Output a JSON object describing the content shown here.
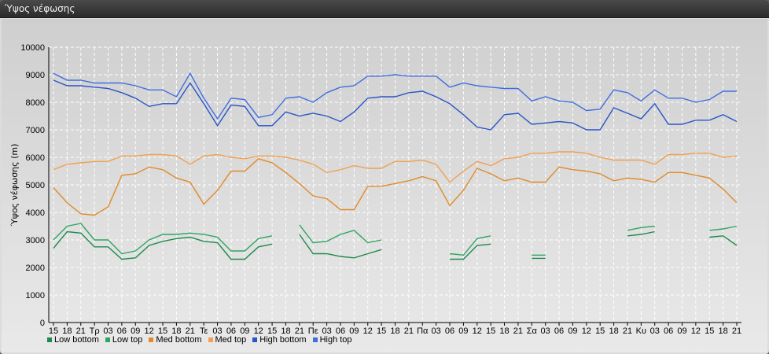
{
  "window": {
    "title": "Ύψος νέφωσης"
  },
  "chart_data": {
    "type": "line",
    "title": "",
    "xlabel": "",
    "ylabel": "Ύψος νέφωσης (m)",
    "ylim": [
      0,
      10000
    ],
    "yticks": [
      0,
      1000,
      2000,
      3000,
      4000,
      5000,
      6000,
      7000,
      8000,
      9000,
      10000
    ],
    "categories": [
      "15",
      "18",
      "21",
      "Τρ",
      "03",
      "06",
      "09",
      "12",
      "15",
      "18",
      "21",
      "Τε",
      "03",
      "06",
      "09",
      "12",
      "15",
      "18",
      "21",
      "Πε",
      "03",
      "06",
      "09",
      "12",
      "15",
      "18",
      "21",
      "Πα",
      "03",
      "06",
      "09",
      "12",
      "15",
      "18",
      "21",
      "Σα",
      "03",
      "06",
      "09",
      "12",
      "15",
      "18",
      "21",
      "Κυ",
      "03",
      "06",
      "09",
      "12",
      "15",
      "18",
      "21"
    ],
    "grid": true,
    "legend_position": "bottom-left",
    "series": [
      {
        "name": "Low bottom",
        "color": "#1e8a4c",
        "values": [
          2700,
          3300,
          3250,
          2750,
          2750,
          2300,
          2350,
          2800,
          2950,
          3050,
          3100,
          2950,
          2900,
          2300,
          2300,
          2750,
          2850,
          null,
          3200,
          2500,
          2500,
          2400,
          2350,
          2500,
          2650,
          null,
          null,
          null,
          null,
          2300,
          2300,
          2800,
          2850,
          null,
          null,
          2330,
          2330,
          null,
          null,
          null,
          null,
          null,
          3150,
          3200,
          3300,
          null,
          null,
          null,
          3100,
          3150,
          2800
        ]
      },
      {
        "name": "Low top",
        "color": "#2fa660",
        "values": [
          3000,
          3500,
          3600,
          3000,
          3000,
          2500,
          2600,
          3000,
          3200,
          3200,
          3250,
          3200,
          3100,
          2600,
          2600,
          3050,
          3150,
          null,
          3550,
          2900,
          2950,
          3200,
          3350,
          2900,
          3000,
          null,
          null,
          null,
          null,
          2500,
          2450,
          3050,
          3150,
          null,
          null,
          2450,
          2450,
          null,
          null,
          null,
          null,
          null,
          3350,
          3450,
          3500,
          null,
          null,
          null,
          3350,
          3400,
          3500
        ]
      },
      {
        "name": "Med bottom",
        "color": "#e08a2a",
        "values": [
          4900,
          4350,
          3950,
          3900,
          4200,
          5350,
          5400,
          5650,
          5550,
          5250,
          5100,
          4300,
          4800,
          5500,
          5500,
          5950,
          5800,
          5450,
          5050,
          4600,
          4500,
          4100,
          4100,
          4950,
          4950,
          5050,
          5150,
          5300,
          5150,
          4250,
          4800,
          5600,
          5400,
          5150,
          5250,
          5100,
          5100,
          5650,
          5550,
          5500,
          5400,
          5150,
          5250,
          5200,
          5100,
          5450,
          5450,
          5350,
          5250,
          4850,
          4350
        ]
      },
      {
        "name": "Med top",
        "color": "#f0a050",
        "values": [
          5550,
          5750,
          5800,
          5850,
          5850,
          6050,
          6050,
          6100,
          6100,
          6050,
          5750,
          6050,
          6100,
          6000,
          5950,
          6050,
          6050,
          6000,
          5900,
          5750,
          5450,
          5550,
          5700,
          5600,
          5600,
          5850,
          5850,
          5900,
          5750,
          5100,
          5500,
          5850,
          5700,
          5950,
          6000,
          6150,
          6150,
          6200,
          6200,
          6150,
          6000,
          5900,
          5900,
          5900,
          5750,
          6100,
          6100,
          6150,
          6150,
          6000,
          6050
        ]
      },
      {
        "name": "High bottom",
        "color": "#2a55c8",
        "values": [
          8800,
          8600,
          8600,
          8550,
          8500,
          8350,
          8150,
          7850,
          7950,
          7950,
          8700,
          7950,
          7150,
          7900,
          7850,
          7150,
          7150,
          7650,
          7500,
          7600,
          7500,
          7300,
          7650,
          8150,
          8200,
          8200,
          8350,
          8400,
          8200,
          7950,
          7550,
          7100,
          7000,
          7550,
          7600,
          7200,
          7250,
          7300,
          7250,
          7000,
          7000,
          7800,
          7600,
          7400,
          7950,
          7200,
          7200,
          7350,
          7350,
          7550,
          7300
        ]
      },
      {
        "name": "High top",
        "color": "#3f6ee0",
        "values": [
          9050,
          8800,
          8800,
          8700,
          8700,
          8700,
          8600,
          8450,
          8450,
          8200,
          9050,
          8150,
          7400,
          8150,
          8100,
          7450,
          7550,
          8150,
          8200,
          8000,
          8350,
          8550,
          8600,
          8950,
          8950,
          9000,
          8950,
          8950,
          8950,
          8550,
          8700,
          8600,
          8550,
          8500,
          8500,
          8050,
          8200,
          8050,
          8000,
          7700,
          7750,
          8450,
          8350,
          8050,
          8450,
          8150,
          8150,
          8000,
          8100,
          8400,
          8400
        ]
      }
    ]
  }
}
